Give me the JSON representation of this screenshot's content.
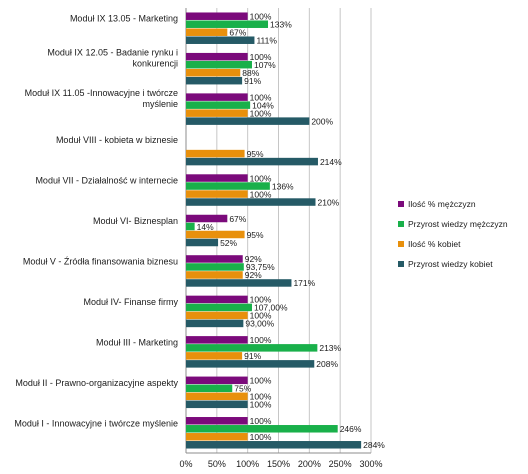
{
  "chart_data": {
    "type": "bar",
    "orientation": "horizontal",
    "categories": [
      "Moduł IX 13.05 - Marketing",
      "Moduł IX 12.05 - Badanie rynku i konkurencji",
      "Moduł IX 11.05 -Innowacyjne i twórcze myślenie",
      "Moduł VIII - kobieta w biznesie",
      "Moduł VII - Działalność w internecie",
      "Moduł VI- Biznesplan",
      "Moduł V - Źródła finansowania biznesu",
      "Moduł IV- Finanse firmy",
      "Moduł III - Marketing",
      "Moduł II - Prawno-organizacyjne aspekty",
      "Moduł I - Innowacyjne i twórcze myślenie"
    ],
    "category_lines": [
      [
        "Moduł IX 13.05 - Marketing"
      ],
      [
        "Moduł IX 12.05 - Badanie rynku i",
        "konkurencji"
      ],
      [
        "Moduł IX 11.05 -Innowacyjne i twórcze",
        "myślenie"
      ],
      [
        "Moduł VIII - kobieta w biznesie"
      ],
      [
        "Moduł VII - Działalność w internecie"
      ],
      [
        "Moduł VI- Biznesplan"
      ],
      [
        "Moduł V - Źródła finansowania biznesu"
      ],
      [
        "Moduł IV- Finanse firmy"
      ],
      [
        "Moduł III - Marketing"
      ],
      [
        "Moduł II - Prawno-organizacyjne aspekty"
      ],
      [
        "Moduł I - Innowacyjne i twórcze myślenie"
      ]
    ],
    "series": [
      {
        "name": "Ilość % mężczyzn",
        "color": "#7B0A7B",
        "values": [
          100,
          100,
          100,
          null,
          100,
          67,
          92,
          100,
          100,
          100,
          100
        ],
        "labels": [
          "100%",
          "100%",
          "100%",
          "",
          "100%",
          "67%",
          "92%",
          "100%",
          "100%",
          "100%",
          "100%"
        ]
      },
      {
        "name": "Przyrost wiedzy mężczyzn",
        "color": "#19B04A",
        "values": [
          133,
          107,
          104,
          null,
          136,
          14,
          93.75,
          107,
          213,
          75,
          246
        ],
        "labels": [
          "133%",
          "107%",
          "104%",
          "",
          "136%",
          "14%",
          "93,75%",
          "107,00%",
          "213%",
          "75%",
          "246%"
        ]
      },
      {
        "name": "Ilość % kobiet",
        "color": "#E8900C",
        "values": [
          67,
          88,
          100,
          95,
          100,
          95,
          92,
          100,
          91,
          100,
          100
        ],
        "labels": [
          "67%",
          "88%",
          "100%",
          "95%",
          "100%",
          "95%",
          "92%",
          "100%",
          "91%",
          "100%",
          "100%"
        ]
      },
      {
        "name": "Przyrost wiedzy kobiet",
        "color": "#255A66",
        "values": [
          111,
          91,
          200,
          214,
          210,
          52,
          171,
          93,
          208,
          100,
          284
        ],
        "labels": [
          "111%",
          "91%",
          "200%",
          "214%",
          "210%",
          "52%",
          "171%",
          "93,00%",
          "208%",
          "100%",
          "284%"
        ]
      }
    ],
    "xlim": [
      0,
      300
    ],
    "xticks": [
      "0%",
      "50%",
      "100%",
      "150%",
      "200%",
      "250%",
      "300%"
    ],
    "grid": true,
    "legend_position": "right"
  }
}
